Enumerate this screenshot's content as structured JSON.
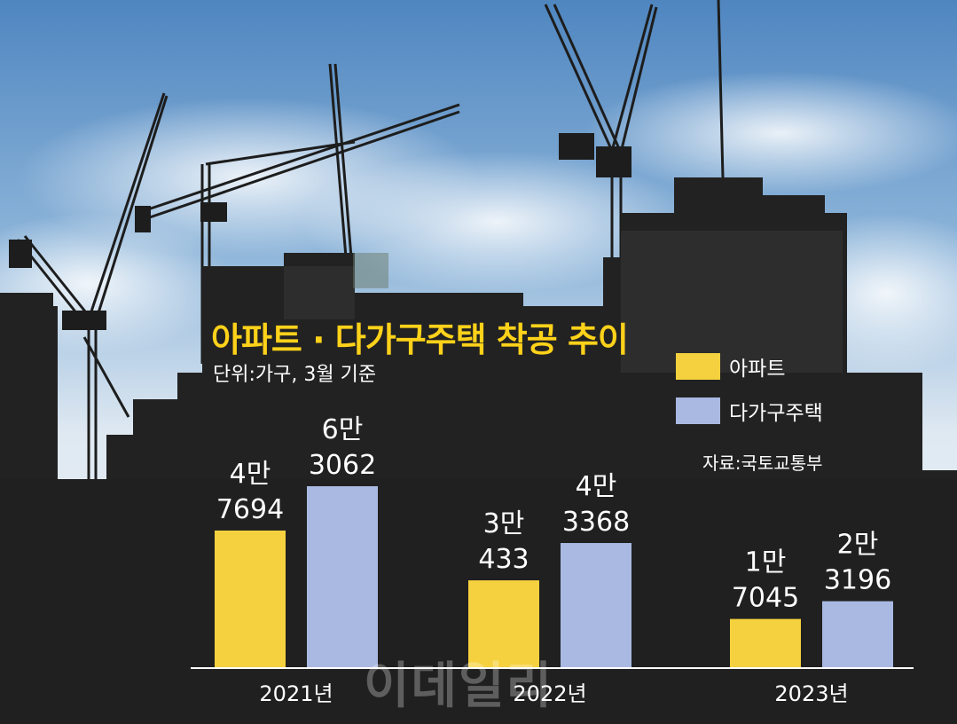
{
  "title": "아파트 · 다가구주택 착공 추이",
  "subtitle": "단위:가구, 3월 기준",
  "source": "자료:국토교통부",
  "watermark": "이데일리",
  "legend": [
    {
      "label": "아파트",
      "color": "#f5d13f"
    },
    {
      "label": "다가구주택",
      "color": "#a9b9e2"
    }
  ],
  "chart_data": {
    "type": "bar",
    "categories": [
      "2021년",
      "2022년",
      "2023년"
    ],
    "series": [
      {
        "name": "아파트",
        "values": [
          47694,
          30433,
          17045
        ],
        "labels": [
          [
            "4만",
            "7694"
          ],
          [
            "3만",
            "433"
          ],
          [
            "1만",
            "7045"
          ]
        ],
        "color": "#f5d13f"
      },
      {
        "name": "다가구주택",
        "values": [
          63062,
          43368,
          23196
        ],
        "labels": [
          [
            "6만",
            "3062"
          ],
          [
            "4만",
            "3368"
          ],
          [
            "2만",
            "3196"
          ]
        ],
        "color": "#a9b9e2"
      }
    ],
    "ylim": [
      0,
      65000
    ],
    "grid": false,
    "legend_position": "right"
  }
}
